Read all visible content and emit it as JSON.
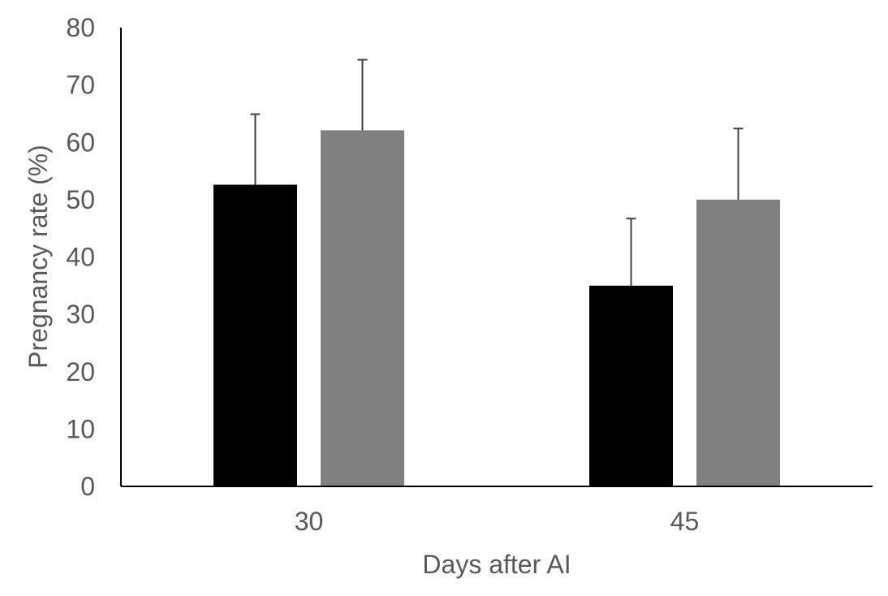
{
  "chart_data": {
    "type": "bar",
    "title": "",
    "xlabel": "Days after AI",
    "ylabel": "Pregnancy rate (%)",
    "categories": [
      "30",
      "45"
    ],
    "ylim": [
      0,
      80
    ],
    "yticks": [
      0,
      10,
      20,
      30,
      40,
      50,
      60,
      70,
      80
    ],
    "grid": false,
    "legend": "none",
    "series": [
      {
        "color": "#000000",
        "values": [
          52.6,
          35.0
        ],
        "error_upper": [
          12.3,
          11.7
        ]
      },
      {
        "color": "#808080",
        "values": [
          62.1,
          50.0
        ],
        "error_upper": [
          12.3,
          12.4
        ]
      }
    ]
  }
}
